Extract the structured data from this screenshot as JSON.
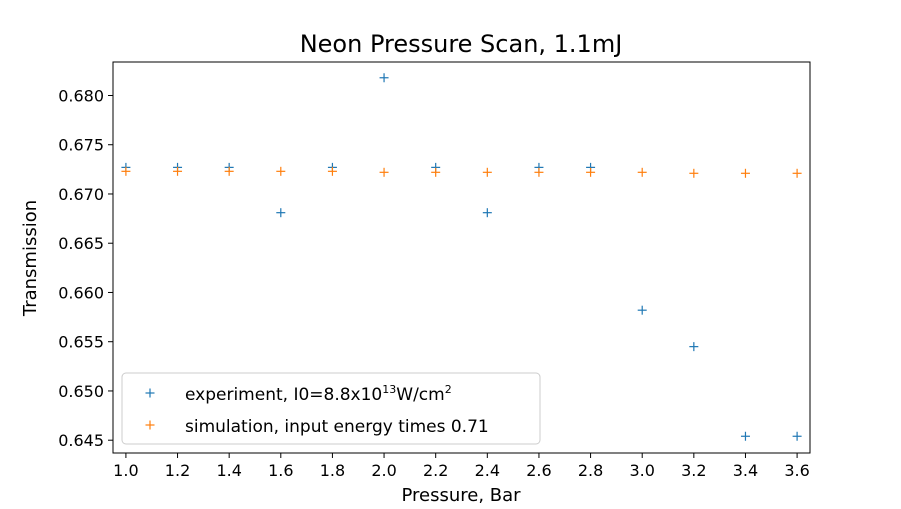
{
  "chart_data": {
    "type": "scatter",
    "title": "Neon Pressure Scan, 1.1mJ",
    "xlabel": "Pressure, Bar",
    "ylabel": "Transmission",
    "xlim": [
      0.95,
      3.65
    ],
    "ylim": [
      0.6437,
      0.6834
    ],
    "xticks": [
      1.0,
      1.2,
      1.4,
      1.6,
      1.8,
      2.0,
      2.2,
      2.4,
      2.6,
      2.8,
      3.0,
      3.2,
      3.4,
      3.6
    ],
    "xtick_labels": [
      "1.0",
      "1.2",
      "1.4",
      "1.6",
      "1.8",
      "2.0",
      "2.2",
      "2.4",
      "2.6",
      "2.8",
      "3.0",
      "3.2",
      "3.4",
      "3.6"
    ],
    "yticks": [
      0.645,
      0.65,
      0.655,
      0.66,
      0.665,
      0.67,
      0.675,
      0.68
    ],
    "ytick_labels": [
      "0.645",
      "0.650",
      "0.655",
      "0.660",
      "0.665",
      "0.670",
      "0.675",
      "0.680"
    ],
    "grid": false,
    "legend_position": "lower-left",
    "marker": "+",
    "series": [
      {
        "name": "experiment, I0=8.8x10",
        "name_sup": "13",
        "name_suffix": "W/cm",
        "name_suffix_sup": "2",
        "color": "#1f77b4",
        "x": [
          1.0,
          1.2,
          1.4,
          1.6,
          1.8,
          2.0,
          2.2,
          2.4,
          2.6,
          2.8,
          3.0,
          3.2,
          3.4,
          3.6
        ],
        "y": [
          0.6727,
          0.6727,
          0.6727,
          0.6681,
          0.6727,
          0.6818,
          0.6727,
          0.6681,
          0.6727,
          0.6727,
          0.6582,
          0.6545,
          0.6454,
          0.6454
        ]
      },
      {
        "name": "simulation, input energy times 0.71",
        "color": "#ff7f0e",
        "x": [
          1.0,
          1.2,
          1.4,
          1.6,
          1.8,
          2.0,
          2.2,
          2.4,
          2.6,
          2.8,
          3.0,
          3.2,
          3.4,
          3.6
        ],
        "y": [
          0.6723,
          0.6723,
          0.6723,
          0.6723,
          0.6723,
          0.6722,
          0.6722,
          0.6722,
          0.6722,
          0.6722,
          0.6722,
          0.6721,
          0.6721,
          0.6721
        ]
      }
    ]
  }
}
